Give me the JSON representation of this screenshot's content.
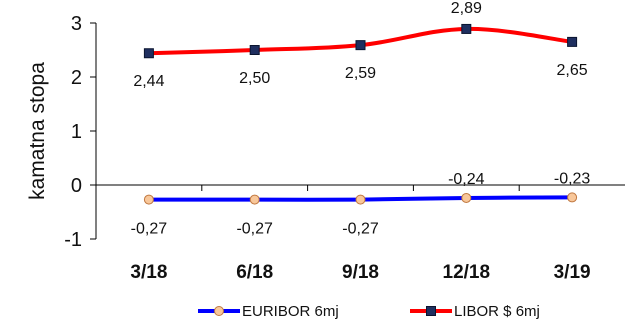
{
  "chart_data": {
    "type": "line",
    "title": "",
    "ylabel": "kamatna  stopa",
    "xlabel": "",
    "categories": [
      "3/18",
      "6/18",
      "9/18",
      "12/18",
      "3/19"
    ],
    "ylim": [
      -1,
      3
    ],
    "yticks": [
      3,
      2,
      1,
      0,
      -1
    ],
    "ytick_labels": [
      "3",
      "2",
      "1",
      "0",
      "-1"
    ],
    "grid": false,
    "legend_position": "bottom",
    "series": [
      {
        "name": "EURIBOR 6mj",
        "values": [
          -0.27,
          -0.27,
          -0.27,
          -0.24,
          -0.23
        ],
        "labels": [
          "-0,27",
          "-0,27",
          "-0,27",
          "-0,24",
          "-0,23"
        ],
        "line_color": "#0000ff",
        "marker": "circle",
        "marker_fill": "#f8c79a",
        "marker_stroke": "#c07840"
      },
      {
        "name": "LIBOR $ 6mj",
        "values": [
          2.44,
          2.5,
          2.59,
          2.89,
          2.65
        ],
        "labels": [
          "2,44",
          "2,50",
          "2,59",
          "2,89",
          "2,65"
        ],
        "line_color": "#ff0000",
        "marker": "square",
        "marker_fill": "#1f2f5f",
        "marker_stroke": "#0a1530"
      }
    ]
  }
}
